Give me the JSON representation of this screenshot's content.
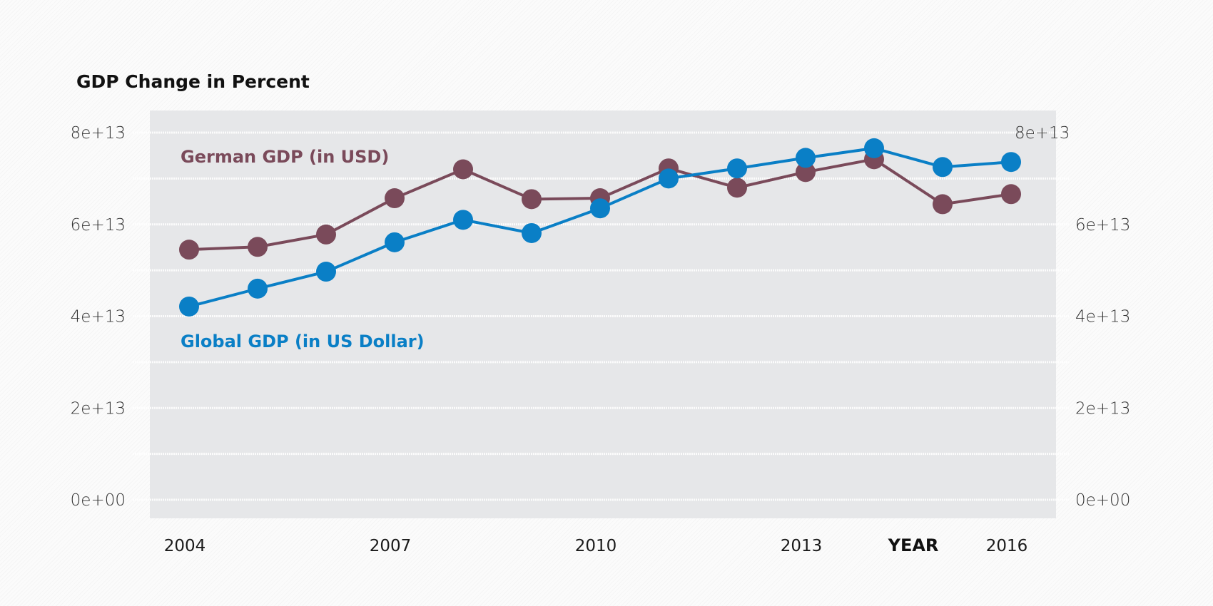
{
  "chart_data": {
    "type": "line",
    "title": "GDP Change in Percent",
    "xlabel": "YEAR",
    "ylabel": "",
    "x": [
      2004,
      2005,
      2006,
      2007,
      2008,
      2009,
      2010,
      2011,
      2012,
      2013,
      2014,
      2015,
      2016
    ],
    "x_ticks": [
      "2004",
      "2007",
      "2010",
      "2013",
      "2016"
    ],
    "x_tick_values": [
      2004,
      2007,
      2010,
      2013,
      2016
    ],
    "xlim": [
      2003.5,
      2016.7
    ],
    "ylim": [
      0,
      80000000000000.0
    ],
    "y_ticks_left": [
      "0e+00",
      "2e+13",
      "4e+13",
      "6e+13",
      "8e+13"
    ],
    "y_ticks_right": [
      "0e+00",
      "2e+13",
      "4e+13",
      "6e+13",
      "8e+13"
    ],
    "y_tick_values": [
      0,
      20000000000000.0,
      40000000000000.0,
      60000000000000.0,
      80000000000000.0
    ],
    "grid_values": [
      0,
      10000000000000.0,
      20000000000000.0,
      30000000000000.0,
      40000000000000.0,
      50000000000000.0,
      60000000000000.0,
      70000000000000.0,
      80000000000000.0
    ],
    "grid": true,
    "legend": "inline-labels",
    "series": [
      {
        "name": "German GDP (in USD)",
        "color": "#7a4a5a",
        "values": [
          54500000000000.0,
          55100000000000.0,
          57800000000000.0,
          65700000000000.0,
          72000000000000.0,
          65500000000000.0,
          65700000000000.0,
          72200000000000.0,
          68000000000000.0,
          71400000000000.0,
          74200000000000.0,
          64400000000000.0,
          66600000000000.0
        ]
      },
      {
        "name": "Global GDP (in US Dollar)",
        "color": "#0a7fc6",
        "values": [
          42100000000000.0,
          46000000000000.0,
          49700000000000.0,
          56100000000000.0,
          61000000000000.0,
          58100000000000.0,
          63500000000000.0,
          70000000000000.0,
          72200000000000.0,
          74500000000000.0,
          76600000000000.0,
          72500000000000.0,
          73600000000000.0
        ]
      }
    ]
  },
  "colors": {
    "panel": "#e6e7e9",
    "grid": "#ffffff",
    "german": "#7a4a5a",
    "global": "#0a7fc6"
  }
}
